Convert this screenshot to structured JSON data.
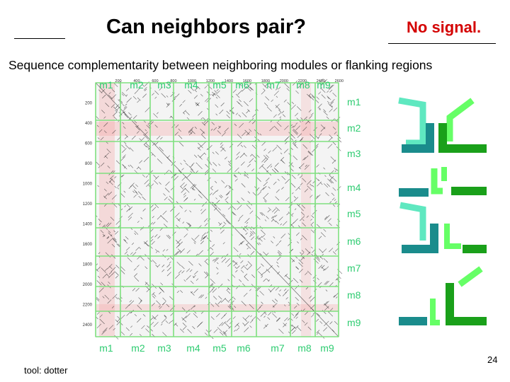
{
  "slide": {
    "title": "Can neighbors pair?",
    "status": "No signal.",
    "subtitle": "Sequence complementarity between neighboring modules or flanking regions",
    "tool_label": "tool: dotter",
    "page_number": "24"
  },
  "dotplot": {
    "modules_top": [
      "m1",
      "m2",
      "m3",
      "m4",
      "m5",
      "m6",
      "m7",
      "m8",
      "m9"
    ],
    "modules_bottom": [
      "m1",
      "m2",
      "m3",
      "m4",
      "m5",
      "m6",
      "m7",
      "m8",
      "m9"
    ],
    "modules_right": [
      "m1",
      "m2",
      "m3",
      "m4",
      "m5",
      "m6",
      "m7",
      "m8",
      "m9"
    ],
    "y_ticks": [
      "200",
      "400",
      "600",
      "800",
      "1000",
      "1200",
      "1400",
      "1600",
      "1800",
      "2000",
      "2200",
      "2400"
    ],
    "x_ticks": [
      "200",
      "400",
      "600",
      "800",
      "1000",
      "1200",
      "1400",
      "1600",
      "1800",
      "2000",
      "2200",
      "2400",
      "2600"
    ],
    "label_color": "#2ecc71",
    "grid_color": "#7fe07f",
    "highlight_color": "#f4a6a6"
  },
  "pair_diagram": {
    "colors": {
      "light_green": "#66ff66",
      "mint": "#5fe8c0",
      "teal": "#1a8c8c",
      "green": "#1aa01a"
    }
  }
}
